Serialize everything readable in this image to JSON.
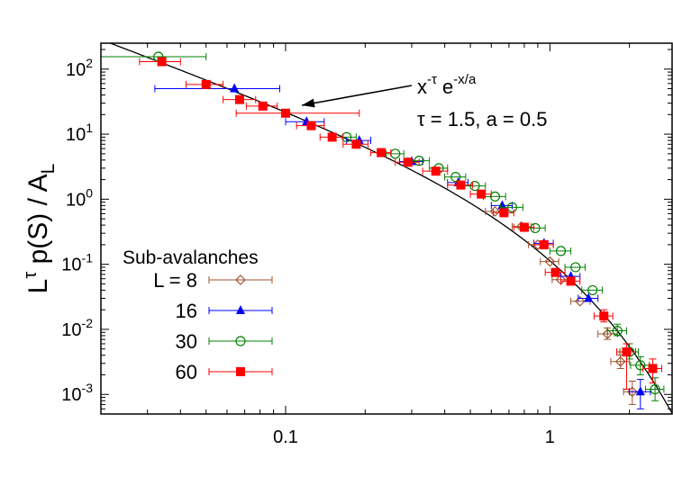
{
  "chart_data": {
    "type": "scatter",
    "title": "",
    "xlabel": "",
    "ylabel": {
      "base": "L",
      "sup": "τ",
      "mid": " p(S) / A",
      "sub": "L"
    },
    "xscale": "log",
    "yscale": "log",
    "xlim": [
      0.02,
      2.9
    ],
    "ylim": [
      0.0005,
      250
    ],
    "x_ticks": [
      {
        "value": 0.1,
        "label": "0.1"
      },
      {
        "value": 1,
        "label": "1"
      }
    ],
    "y_ticks": [
      {
        "value": 100,
        "base": "10",
        "exp": "2"
      },
      {
        "value": 10,
        "base": "10",
        "exp": "1"
      },
      {
        "value": 1,
        "base": "10",
        "exp": "0"
      },
      {
        "value": 0.1,
        "base": "10",
        "exp": "-1"
      },
      {
        "value": 0.01,
        "base": "10",
        "exp": "-2"
      },
      {
        "value": 0.001,
        "base": "10",
        "exp": "-3"
      }
    ],
    "grid": false,
    "legend": {
      "title": "Sub-avalanches",
      "placement": "bottom-left",
      "entries": [
        "L =  8",
        "16",
        "30",
        "60"
      ]
    },
    "annotation": {
      "line1": {
        "a": "x",
        "a_sup": "-τ",
        "b": " e",
        "b_sup": "-x/a"
      },
      "line2": "τ = 1.5, a = 0.5",
      "arrow_to": [
        0.105,
        22
      ]
    },
    "fit_curve": {
      "formula": "C * x^(-tau) * exp(-x/a)",
      "tau": 1.5,
      "a": 0.5,
      "C": 0.836
    },
    "series": [
      {
        "name": "8",
        "color": "#A0522D",
        "marker": "diamond-open",
        "points": [
          {
            "x": 0.62,
            "y": 0.65,
            "xe": [
              0.57,
              0.68
            ]
          },
          {
            "x": 0.78,
            "y": 0.38,
            "xe": [
              0.72,
              0.85
            ]
          },
          {
            "x": 0.9,
            "y": 0.2,
            "xe": [
              0.83,
              0.98
            ]
          },
          {
            "x": 1.0,
            "y": 0.11,
            "xe": [
              0.92,
              1.08
            ]
          },
          {
            "x": 1.1,
            "y": 0.058,
            "xe": [
              1.02,
              1.2
            ]
          },
          {
            "x": 1.3,
            "y": 0.027,
            "xe": [
              1.2,
              1.42
            ]
          },
          {
            "x": 1.65,
            "y": 0.0085,
            "xe": [
              1.52,
              1.8
            ],
            "ye": [
              0.007,
              0.0105
            ]
          },
          {
            "x": 1.85,
            "y": 0.0032,
            "xe": [
              1.7,
              2.0
            ],
            "ye": [
              0.0025,
              0.004
            ]
          },
          {
            "x": 2.05,
            "y": 0.0011,
            "xe": [
              1.9,
              2.2
            ],
            "ye": [
              0.0007,
              0.0016
            ]
          }
        ]
      },
      {
        "name": "16",
        "color": "#0000FF",
        "marker": "triangle",
        "points": [
          {
            "x": 0.064,
            "y": 50,
            "xe": [
              0.032,
              0.095
            ]
          },
          {
            "x": 0.12,
            "y": 15.5,
            "xe": [
              0.1,
              0.14
            ]
          },
          {
            "x": 0.19,
            "y": 8.0,
            "xe": [
              0.17,
              0.21
            ]
          },
          {
            "x": 0.3,
            "y": 3.8,
            "xe": [
              0.27,
              0.33
            ]
          },
          {
            "x": 0.45,
            "y": 1.8,
            "xe": [
              0.41,
              0.49
            ]
          },
          {
            "x": 0.66,
            "y": 0.8,
            "xe": [
              0.6,
              0.72
            ]
          },
          {
            "x": 0.95,
            "y": 0.21,
            "xe": [
              0.87,
              1.03
            ]
          },
          {
            "x": 1.2,
            "y": 0.065,
            "xe": [
              1.1,
              1.3
            ]
          },
          {
            "x": 1.4,
            "y": 0.03,
            "xe": [
              1.28,
              1.52
            ]
          },
          {
            "x": 2.2,
            "y": 0.0011,
            "xe": [
              2.0,
              2.4
            ],
            "ye": [
              0.0006,
              0.0017
            ]
          }
        ]
      },
      {
        "name": "30",
        "color": "#008000",
        "marker": "circle-open",
        "points": [
          {
            "x": 0.033,
            "y": 155,
            "xe": [
              0.02,
              0.05
            ]
          },
          {
            "x": 0.17,
            "y": 9.0,
            "xe": [
              0.155,
              0.185
            ]
          },
          {
            "x": 0.26,
            "y": 5.0,
            "xe": [
              0.24,
              0.28
            ]
          },
          {
            "x": 0.32,
            "y": 3.9,
            "xe": [
              0.29,
              0.35
            ]
          },
          {
            "x": 0.38,
            "y": 3.0,
            "xe": [
              0.35,
              0.41
            ]
          },
          {
            "x": 0.44,
            "y": 2.2,
            "xe": [
              0.4,
              0.48
            ]
          },
          {
            "x": 0.52,
            "y": 1.6,
            "xe": [
              0.47,
              0.57
            ]
          },
          {
            "x": 0.62,
            "y": 1.1,
            "xe": [
              0.56,
              0.68
            ]
          },
          {
            "x": 0.72,
            "y": 0.75,
            "xe": [
              0.65,
              0.79
            ]
          },
          {
            "x": 0.88,
            "y": 0.36,
            "xe": [
              0.8,
              0.96
            ]
          },
          {
            "x": 1.1,
            "y": 0.16,
            "xe": [
              1.0,
              1.2
            ]
          },
          {
            "x": 1.25,
            "y": 0.09,
            "xe": [
              1.14,
              1.36
            ]
          },
          {
            "x": 1.45,
            "y": 0.04,
            "xe": [
              1.32,
              1.58
            ]
          },
          {
            "x": 1.8,
            "y": 0.0095,
            "xe": [
              1.65,
              1.95
            ],
            "ye": [
              0.008,
              0.012
            ]
          },
          {
            "x": 2.0,
            "y": 0.0045,
            "xe": [
              1.84,
              2.16
            ],
            "ye": [
              0.0035,
              0.006
            ]
          },
          {
            "x": 2.2,
            "y": 0.0028,
            "xe": [
              2.02,
              2.38
            ],
            "ye": [
              0.002,
              0.0038
            ]
          },
          {
            "x": 2.5,
            "y": 0.0012,
            "xe": [
              2.3,
              2.7
            ],
            "ye": [
              0.0008,
              0.0018
            ]
          }
        ]
      },
      {
        "name": "60",
        "color": "#FF0000",
        "marker": "square",
        "points": [
          {
            "x": 0.034,
            "y": 130,
            "xe": [
              0.028,
              0.04
            ]
          },
          {
            "x": 0.05,
            "y": 58,
            "xe": [
              0.042,
              0.058
            ]
          },
          {
            "x": 0.067,
            "y": 34,
            "xe": [
              0.058,
              0.077
            ]
          },
          {
            "x": 0.082,
            "y": 27,
            "xe": [
              0.071,
              0.093
            ]
          },
          {
            "x": 0.1,
            "y": 21,
            "xe": [
              0.065,
              0.19
            ]
          },
          {
            "x": 0.125,
            "y": 13.5,
            "xe": [
              0.11,
              0.14
            ]
          },
          {
            "x": 0.15,
            "y": 9.0,
            "xe": [
              0.135,
              0.165
            ]
          },
          {
            "x": 0.185,
            "y": 7.0,
            "xe": [
              0.165,
              0.205
            ]
          },
          {
            "x": 0.23,
            "y": 5.2,
            "xe": [
              0.21,
              0.25
            ]
          },
          {
            "x": 0.29,
            "y": 3.7,
            "xe": [
              0.26,
              0.32
            ]
          },
          {
            "x": 0.37,
            "y": 2.7,
            "xe": [
              0.33,
              0.41
            ]
          },
          {
            "x": 0.46,
            "y": 1.65,
            "xe": [
              0.41,
              0.51
            ]
          },
          {
            "x": 0.55,
            "y": 1.2,
            "xe": [
              0.5,
              0.6
            ]
          },
          {
            "x": 0.67,
            "y": 0.62,
            "xe": [
              0.61,
              0.73
            ]
          },
          {
            "x": 0.8,
            "y": 0.37,
            "xe": [
              0.73,
              0.87
            ]
          },
          {
            "x": 0.95,
            "y": 0.2,
            "xe": [
              0.87,
              1.03
            ]
          },
          {
            "x": 1.05,
            "y": 0.075,
            "xe": [
              0.96,
              1.14
            ]
          },
          {
            "x": 1.2,
            "y": 0.055,
            "xe": [
              1.1,
              1.3
            ]
          },
          {
            "x": 1.6,
            "y": 0.016,
            "xe": [
              1.47,
              1.73
            ],
            "ye": [
              0.013,
              0.02
            ]
          },
          {
            "x": 1.95,
            "y": 0.0045,
            "xe": [
              1.79,
              2.11
            ],
            "ye": [
              0.0012,
              0.006
            ]
          },
          {
            "x": 2.45,
            "y": 0.0025,
            "xe": [
              2.25,
              2.65
            ],
            "ye": [
              0.0015,
              0.0035
            ]
          }
        ]
      }
    ]
  }
}
